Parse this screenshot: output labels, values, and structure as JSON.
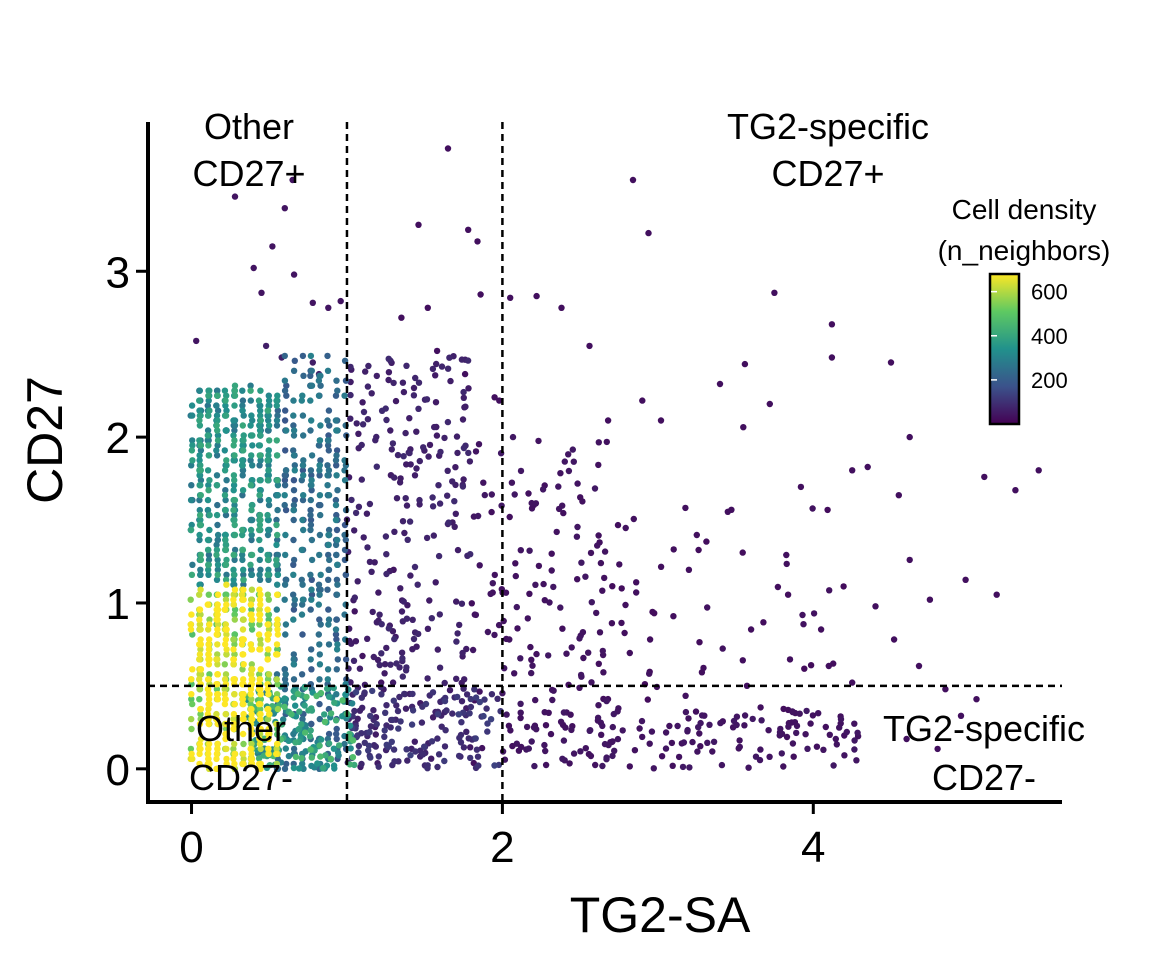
{
  "chart_data": {
    "type": "scatter",
    "title": "",
    "xlabel": "TG2-SA",
    "ylabel": "CD27",
    "xlim": [
      -0.28,
      5.6
    ],
    "ylim": [
      -0.2,
      3.9
    ],
    "x_ticks": [
      0,
      2,
      4
    ],
    "x_tick_labels": [
      "0",
      "2",
      "4"
    ],
    "y_ticks": [
      0,
      1,
      2,
      3
    ],
    "y_tick_labels": [
      "0",
      "1",
      "2",
      "3"
    ],
    "grid": false,
    "thresholds": {
      "x_lines": [
        1,
        2
      ],
      "y_lines": [
        0.5
      ]
    },
    "region_labels": [
      {
        "key": "top_left",
        "lines": [
          "Other",
          "CD27+"
        ]
      },
      {
        "key": "top_right",
        "lines": [
          "TG2-specific",
          "CD27+"
        ]
      },
      {
        "key": "bottom_left",
        "lines": [
          "Other",
          "CD27-"
        ]
      },
      {
        "key": "bottom_right",
        "lines": [
          "TG2-specific",
          "CD27-"
        ]
      }
    ],
    "legend": {
      "title_lines": [
        "Cell density",
        "(n_neighbors)"
      ],
      "ticks": [
        200,
        400,
        600
      ],
      "tick_labels": [
        "200",
        "400",
        "600"
      ],
      "range": [
        0,
        680
      ],
      "placement": "top-right",
      "colormap": "viridis",
      "stops": [
        "#440154",
        "#3b528b",
        "#21918c",
        "#5ec962",
        "#fde725"
      ]
    },
    "series": [
      {
        "name": "cells",
        "color_by": "n_neighbors",
        "points": [
          [
            0.03,
            2.58,
            40
          ],
          [
            0.28,
            3.45,
            40
          ],
          [
            0.65,
            3.55,
            40
          ],
          [
            0.6,
            3.38,
            40
          ],
          [
            0.4,
            3.02,
            40
          ],
          [
            0.52,
            3.15,
            40
          ],
          [
            0.45,
            2.87,
            40
          ],
          [
            0.66,
            2.98,
            40
          ],
          [
            0.78,
            2.81,
            40
          ],
          [
            0.88,
            2.78,
            40
          ],
          [
            0.96,
            2.82,
            40
          ],
          [
            0.58,
            2.48,
            60
          ],
          [
            0.48,
            2.55,
            60
          ],
          [
            0.78,
            2.45,
            60
          ],
          [
            0.82,
            2.38,
            60
          ],
          [
            1.65,
            3.74,
            30
          ],
          [
            1.46,
            3.28,
            30
          ],
          [
            1.78,
            3.25,
            30
          ],
          [
            1.84,
            3.18,
            30
          ],
          [
            2.84,
            3.55,
            30
          ],
          [
            2.94,
            3.23,
            30
          ],
          [
            3.75,
            2.87,
            30
          ],
          [
            1.35,
            2.72,
            30
          ],
          [
            1.52,
            2.78,
            30
          ],
          [
            1.86,
            2.86,
            30
          ],
          [
            2.05,
            2.84,
            30
          ],
          [
            2.22,
            2.85,
            30
          ],
          [
            2.38,
            2.78,
            30
          ],
          [
            4.12,
            2.68,
            30
          ],
          [
            4.12,
            2.48,
            30
          ],
          [
            4.5,
            2.45,
            30
          ],
          [
            3.56,
            2.44,
            30
          ],
          [
            2.56,
            2.55,
            30
          ],
          [
            1.58,
            2.52,
            30
          ],
          [
            1.76,
            2.38,
            30
          ],
          [
            1.98,
            2.22,
            30
          ],
          [
            2.68,
            2.1,
            30
          ],
          [
            2.9,
            2.22,
            30
          ],
          [
            3.02,
            2.1,
            30
          ],
          [
            3.72,
            2.2,
            30
          ],
          [
            3.55,
            2.06,
            30
          ],
          [
            4.62,
            2.0,
            30
          ],
          [
            4.25,
            1.8,
            30
          ],
          [
            4.35,
            1.82,
            30
          ],
          [
            4.55,
            1.65,
            30
          ],
          [
            5.1,
            1.76,
            30
          ],
          [
            5.45,
            1.8,
            30
          ],
          [
            5.3,
            1.68,
            30
          ],
          [
            3.92,
            1.7,
            30
          ],
          [
            3.45,
            1.55,
            30
          ],
          [
            4.62,
            1.26,
            30
          ],
          [
            4.98,
            1.14,
            30
          ],
          [
            5.18,
            1.05,
            30
          ],
          [
            4.75,
            1.02,
            30
          ],
          [
            4.4,
            0.98,
            30
          ],
          [
            4.52,
            0.78,
            30
          ],
          [
            4.68,
            0.62,
            30
          ],
          [
            4.25,
            0.52,
            30
          ],
          [
            4.85,
            0.48,
            30
          ],
          [
            5.05,
            0.42,
            30
          ],
          [
            4.95,
            0.32,
            30
          ],
          [
            4.6,
            0.18,
            30
          ],
          [
            4.8,
            0.12,
            30
          ],
          [
            3.4,
            2.32,
            30
          ],
          [
            3.2,
            1.2,
            30
          ],
          [
            3.1,
            0.92,
            30
          ],
          [
            2.95,
            0.78,
            30
          ],
          [
            3.6,
            0.84,
            30
          ],
          [
            3.85,
            0.66,
            30
          ],
          [
            4.05,
            0.84,
            30
          ],
          [
            4.1,
            0.62,
            30
          ],
          [
            1.22,
            0.52,
            40
          ],
          [
            1.1,
            0.68,
            40
          ],
          [
            1.05,
            0.95,
            40
          ],
          [
            1.3,
            1.2,
            40
          ],
          [
            1.95,
            2.24,
            30
          ]
        ],
        "clusters": [
          {
            "x": [
              0.0,
              0.55
            ],
            "y": [
              0.0,
              1.1
            ],
            "n": 520,
            "n_neighbors": 620,
            "jitter": "columns"
          },
          {
            "x": [
              0.0,
              0.55
            ],
            "y": [
              1.1,
              2.3
            ],
            "n": 420,
            "n_neighbors": 330,
            "jitter": "columns"
          },
          {
            "x": [
              0.55,
              1.0
            ],
            "y": [
              0.0,
              2.5
            ],
            "n": 360,
            "n_neighbors": 240,
            "jitter": "columns"
          },
          {
            "x": [
              0.35,
              1.05
            ],
            "y": [
              0.0,
              0.5
            ],
            "n": 170,
            "n_neighbors": 380,
            "jitter": "uniform"
          },
          {
            "x": [
              1.0,
              1.8
            ],
            "y": [
              0.0,
              2.5
            ],
            "n": 290,
            "n_neighbors": 70,
            "jitter": "uniform"
          },
          {
            "x": [
              1.0,
              2.0
            ],
            "y": [
              0.0,
              0.5
            ],
            "n": 110,
            "n_neighbors": 110,
            "jitter": "uniform"
          },
          {
            "x": [
              1.8,
              2.7
            ],
            "y": [
              0.0,
              2.0
            ],
            "n": 150,
            "n_neighbors": 40,
            "jitter": "uniform"
          },
          {
            "x": [
              2.0,
              4.3
            ],
            "y": [
              0.0,
              0.35
            ],
            "n": 150,
            "n_neighbors": 40,
            "jitter": "uniform"
          },
          {
            "x": [
              2.7,
              4.2
            ],
            "y": [
              0.35,
              1.6
            ],
            "n": 55,
            "n_neighbors": 30,
            "jitter": "uniform"
          }
        ]
      }
    ]
  }
}
